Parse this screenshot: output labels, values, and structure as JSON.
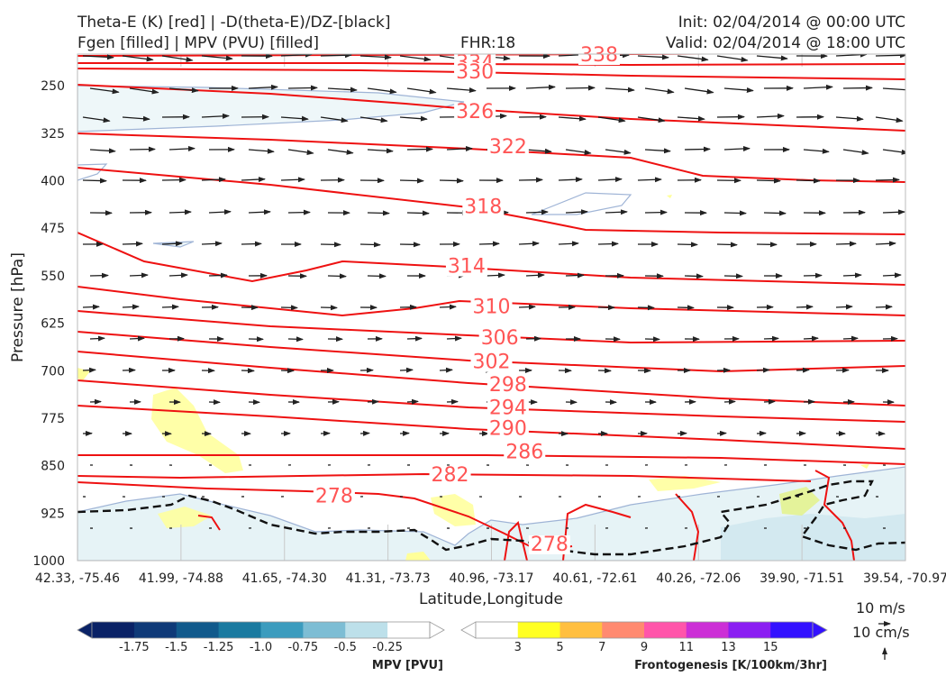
{
  "header": {
    "line1_left": "Theta-E (K) [red] | -D(theta-E)/DZ-[black]",
    "line2_left": "Fgen [filled] | MPV (PVU) [filled]",
    "fhr": "FHR:18",
    "init": "Init: 02/04/2014 @ 00:00 UTC",
    "valid": "Valid: 02/04/2014 @ 18:00 UTC"
  },
  "chart_data": {
    "type": "cross-section",
    "xlabel": "Latitude,Longitude",
    "ylabel": "Pressure [hPa]",
    "x_ticks": [
      "42.33, -75.46",
      "41.99, -74.88",
      "41.65, -74.30",
      "41.31, -73.73",
      "40.96, -73.17",
      "40.61, -72.61",
      "40.26, -72.06",
      "39.90, -71.51",
      "39.54, -70.97"
    ],
    "y_ticks": [
      250,
      325,
      400,
      475,
      550,
      625,
      700,
      775,
      850,
      925,
      1000
    ],
    "y_range": [
      1000,
      200
    ],
    "y_inverted": true,
    "theta_e_contours": [
      {
        "value": "338",
        "x": 0.63,
        "p": 200
      },
      {
        "value": "334",
        "x": 0.48,
        "p": 212
      },
      {
        "value": "330",
        "x": 0.48,
        "p": 227
      },
      {
        "value": "326",
        "x": 0.48,
        "p": 290
      },
      {
        "value": "322",
        "x": 0.52,
        "p": 345
      },
      {
        "value": "318",
        "x": 0.49,
        "p": 440
      },
      {
        "value": "314",
        "x": 0.47,
        "p": 534
      },
      {
        "value": "310",
        "x": 0.5,
        "p": 598
      },
      {
        "value": "306",
        "x": 0.51,
        "p": 647
      },
      {
        "value": "302",
        "x": 0.5,
        "p": 685
      },
      {
        "value": "298",
        "x": 0.52,
        "p": 721
      },
      {
        "value": "294",
        "x": 0.52,
        "p": 757
      },
      {
        "value": "290",
        "x": 0.52,
        "p": 790
      },
      {
        "value": "286",
        "x": 0.54,
        "p": 827
      },
      {
        "value": "282",
        "x": 0.45,
        "p": 863
      },
      {
        "value": "278",
        "x": 0.31,
        "p": 897
      },
      {
        "value": "278",
        "x": 0.57,
        "p": 973
      }
    ],
    "colorbar_mpv": {
      "title": "MPV [PVU]",
      "labels": [
        "-1.75",
        "-1.5",
        "-1.25",
        "-1.0",
        "-0.75",
        "-0.5",
        "-0.25"
      ],
      "colors": [
        "#0a2266",
        "#0f3a78",
        "#115a8c",
        "#1a7aa0",
        "#3c9cbe",
        "#7dbdd4",
        "#bde0ea",
        "#ffffff"
      ]
    },
    "colorbar_fgen": {
      "title": "Frontogenesis [K/100km/3hr]",
      "labels": [
        "3",
        "5",
        "7",
        "9",
        "11",
        "13",
        "15"
      ],
      "colors": [
        "#ffffff",
        "#ffff22",
        "#ffbf40",
        "#ff8a70",
        "#ff55aa",
        "#cc2fd6",
        "#8b1ef2",
        "#3311ff"
      ]
    },
    "reference_vectors": {
      "horizontal": "10 m/s",
      "vertical": "10 cm/s"
    }
  }
}
